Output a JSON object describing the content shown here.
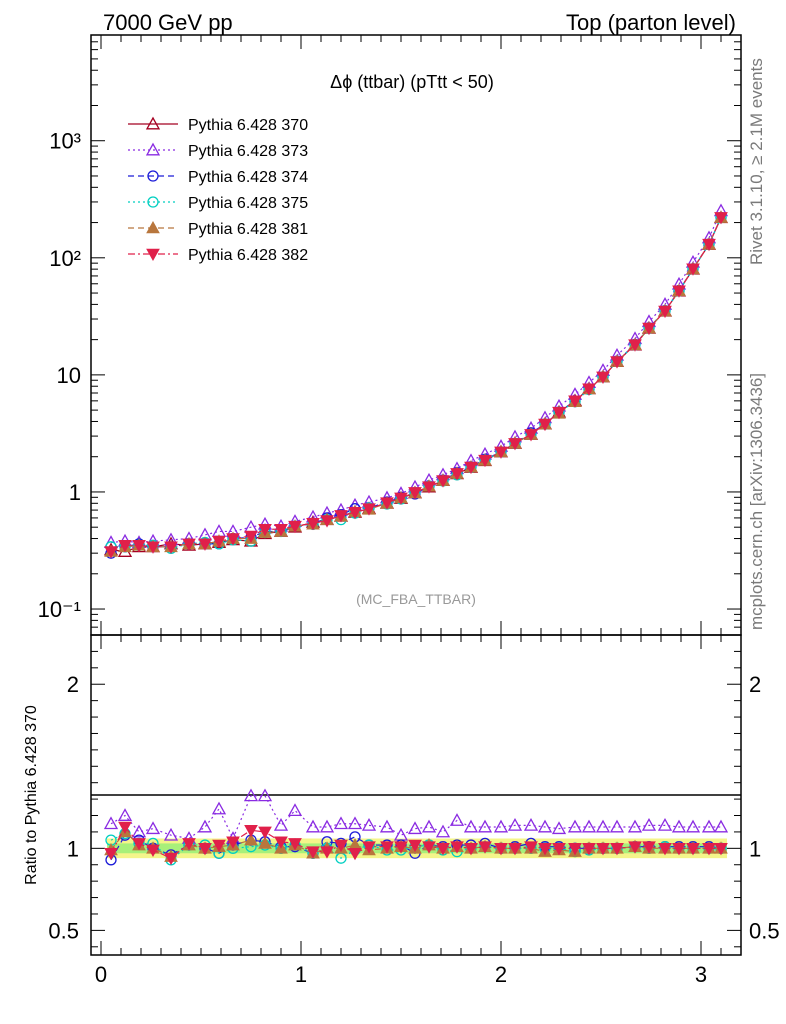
{
  "header": {
    "left": "7000 GeV pp",
    "right": "Top (parton level)"
  },
  "side_labels": {
    "rivet": "Rivet 3.1.10, ≥ 2.1M events",
    "mcplots": "mcplots.cern.ch [arXiv:1306.3436]"
  },
  "chart_data": [
    {
      "type": "line",
      "title": "Δϕ (ttbar) (pTtt < 50)",
      "annotation": "(MC_FBA_TTBAR)",
      "xlabel": "",
      "ylabel": "",
      "yscale": "log",
      "xlim": [
        -0.05,
        3.2
      ],
      "ylim": [
        0.06,
        8000
      ],
      "ytick_labels": [
        "10⁻¹",
        "1",
        "10",
        "10²",
        "10³"
      ],
      "ytick_values": [
        0.1,
        1,
        10,
        100,
        1000
      ],
      "legend_position": "top-left",
      "x": [
        0.05,
        0.12,
        0.19,
        0.26,
        0.35,
        0.44,
        0.52,
        0.59,
        0.66,
        0.75,
        0.82,
        0.9,
        0.97,
        1.06,
        1.13,
        1.2,
        1.27,
        1.34,
        1.43,
        1.5,
        1.57,
        1.64,
        1.71,
        1.78,
        1.85,
        1.92,
        2.0,
        2.07,
        2.15,
        2.22,
        2.29,
        2.37,
        2.44,
        2.51,
        2.58,
        2.67,
        2.74,
        2.82,
        2.89,
        2.96,
        3.04,
        3.1
      ],
      "series": [
        {
          "name": "Pythia 6.428 370",
          "color": "#a50021",
          "marker": "triangle-open",
          "dash": "solid",
          "values": [
            0.32,
            0.31,
            0.34,
            0.34,
            0.36,
            0.35,
            0.36,
            0.37,
            0.39,
            0.38,
            0.44,
            0.46,
            0.5,
            0.55,
            0.58,
            0.62,
            0.67,
            0.72,
            0.8,
            0.88,
            0.98,
            1.1,
            1.25,
            1.43,
            1.62,
            1.85,
            2.2,
            2.6,
            3.1,
            3.8,
            4.8,
            6.0,
            7.6,
            9.6,
            13.0,
            18.0,
            25.0,
            35.0,
            52.0,
            80.0,
            130.0,
            220.0
          ]
        },
        {
          "name": "Pythia 6.428 373",
          "color": "#8a2be2",
          "marker": "triangle-open",
          "dash": "dotted",
          "values": [
            0.37,
            0.38,
            0.37,
            0.38,
            0.39,
            0.4,
            0.43,
            0.46,
            0.46,
            0.5,
            0.53,
            0.51,
            0.56,
            0.61,
            0.66,
            0.7,
            0.77,
            0.82,
            0.89,
            0.97,
            1.1,
            1.26,
            1.4,
            1.58,
            1.85,
            2.1,
            2.45,
            2.95,
            3.5,
            4.3,
            5.4,
            6.8,
            8.6,
            10.9,
            14.7,
            20.4,
            28.5,
            40.0,
            59.5,
            91.5,
            148.0,
            252.0
          ]
        },
        {
          "name": "Pythia 6.428 374",
          "color": "#1c1cd8",
          "marker": "circle-open",
          "dash": "dashed",
          "values": [
            0.3,
            0.34,
            0.36,
            0.34,
            0.34,
            0.36,
            0.36,
            0.36,
            0.4,
            0.41,
            0.46,
            0.46,
            0.51,
            0.53,
            0.6,
            0.64,
            0.72,
            0.73,
            0.82,
            0.9,
            0.96,
            1.12,
            1.26,
            1.46,
            1.64,
            1.9,
            2.2,
            2.6,
            3.2,
            3.8,
            4.8,
            6.0,
            7.6,
            9.6,
            13.1,
            18.2,
            25.2,
            35.4,
            52.5,
            80.5,
            131.0,
            221.0
          ]
        },
        {
          "name": "Pythia 6.428 375",
          "color": "#00cfc1",
          "marker": "circle-open",
          "dash": "dotted",
          "values": [
            0.34,
            0.34,
            0.35,
            0.35,
            0.33,
            0.36,
            0.37,
            0.36,
            0.39,
            0.38,
            0.45,
            0.46,
            0.51,
            0.53,
            0.58,
            0.58,
            0.66,
            0.73,
            0.79,
            0.87,
            0.99,
            1.12,
            1.24,
            1.4,
            1.62,
            1.87,
            2.2,
            2.6,
            3.1,
            3.8,
            4.8,
            5.9,
            7.5,
            9.6,
            13.0,
            18.1,
            25.0,
            35.2,
            52.2,
            80.4,
            130.5,
            220.5
          ]
        },
        {
          "name": "Pythia 6.428 381",
          "color": "#b8763d",
          "marker": "triangle-filled",
          "dash": "dashed",
          "values": [
            0.31,
            0.34,
            0.35,
            0.34,
            0.34,
            0.36,
            0.36,
            0.38,
            0.4,
            0.4,
            0.45,
            0.46,
            0.51,
            0.53,
            0.58,
            0.62,
            0.68,
            0.71,
            0.8,
            0.89,
            0.98,
            1.12,
            1.25,
            1.44,
            1.63,
            1.86,
            2.2,
            2.6,
            3.1,
            3.8,
            4.7,
            5.9,
            7.6,
            9.6,
            13.0,
            18.1,
            25.1,
            35.1,
            52.3,
            80.4,
            130.3,
            220.8
          ]
        },
        {
          "name": "Pythia 6.428 382",
          "color": "#e0204a",
          "marker": "triangle-down-filled",
          "dash": "dashdot",
          "values": [
            0.31,
            0.35,
            0.35,
            0.34,
            0.34,
            0.36,
            0.36,
            0.38,
            0.4,
            0.42,
            0.48,
            0.48,
            0.51,
            0.54,
            0.57,
            0.63,
            0.67,
            0.72,
            0.81,
            0.89,
            0.99,
            1.11,
            1.25,
            1.44,
            1.63,
            1.87,
            2.2,
            2.6,
            3.1,
            3.8,
            4.8,
            6.0,
            7.6,
            9.6,
            13.0,
            18.1,
            25.1,
            35.1,
            52.3,
            80.6,
            130.7,
            221.5
          ]
        }
      ]
    },
    {
      "type": "line",
      "title": "",
      "ylabel": "Ratio to Pythia 6.428 370",
      "ylim": [
        0.35,
        2.3
      ],
      "xlim": [
        -0.05,
        3.2
      ],
      "ytick_labels": [
        "0.5",
        "1",
        "2"
      ],
      "ytick_values": [
        0.5,
        1,
        2
      ],
      "xtick_labels": [
        "0",
        "1",
        "2",
        "3"
      ],
      "xtick_values": [
        0,
        1,
        2,
        3
      ],
      "reference_line": 1,
      "band_inner": 0.03,
      "band_outer": 0.06,
      "band_colors": {
        "inner": "#a8f07a",
        "outer": "#f4f58a"
      },
      "x": [
        0.05,
        0.12,
        0.19,
        0.26,
        0.35,
        0.44,
        0.52,
        0.59,
        0.66,
        0.75,
        0.82,
        0.9,
        0.97,
        1.06,
        1.13,
        1.2,
        1.27,
        1.34,
        1.43,
        1.5,
        1.57,
        1.64,
        1.71,
        1.78,
        1.85,
        1.92,
        2.0,
        2.07,
        2.15,
        2.22,
        2.29,
        2.37,
        2.44,
        2.51,
        2.58,
        2.67,
        2.74,
        2.82,
        2.89,
        2.96,
        3.04,
        3.1
      ],
      "series": [
        {
          "name": "Pythia 6.428 373",
          "color": "#8a2be2",
          "marker": "triangle-open",
          "dash": "dotted",
          "values": [
            1.15,
            1.2,
            1.1,
            1.12,
            1.08,
            1.06,
            1.13,
            1.24,
            1.06,
            1.32,
            1.32,
            1.14,
            1.23,
            1.13,
            1.13,
            1.15,
            1.15,
            1.14,
            1.13,
            1.08,
            1.12,
            1.13,
            1.1,
            1.17,
            1.13,
            1.13,
            1.13,
            1.14,
            1.14,
            1.13,
            1.12,
            1.13,
            1.13,
            1.13,
            1.13,
            1.13,
            1.14,
            1.14,
            1.13,
            1.13,
            1.13,
            1.13
          ]
        },
        {
          "name": "Pythia 6.428 374",
          "color": "#1c1cd8",
          "marker": "circle-open",
          "dash": "dashed",
          "values": [
            0.93,
            1.08,
            1.05,
            1.0,
            0.96,
            1.02,
            1.0,
            0.97,
            1.02,
            1.05,
            1.04,
            1.01,
            1.01,
            0.97,
            1.04,
            1.03,
            1.07,
            1.02,
            1.02,
            1.02,
            0.97,
            1.02,
            1.01,
            1.02,
            1.02,
            1.03,
            1.0,
            1.01,
            1.03,
            1.01,
            1.01,
            1.0,
            1.0,
            1.0,
            1.0,
            1.01,
            1.01,
            1.01,
            1.01,
            1.01,
            1.01,
            1.0
          ]
        },
        {
          "name": "Pythia 6.428 375",
          "color": "#00cfc1",
          "marker": "circle-open",
          "dash": "dotted",
          "values": [
            1.05,
            1.09,
            1.03,
            1.03,
            0.93,
            1.02,
            1.02,
            0.97,
            1.0,
            1.01,
            1.02,
            1.0,
            1.02,
            0.97,
            1.0,
            0.94,
            0.99,
            1.02,
            0.99,
            0.99,
            1.01,
            1.02,
            0.99,
            0.98,
            1.0,
            1.01,
            1.0,
            1.0,
            1.0,
            1.0,
            1.0,
            0.98,
            0.99,
            1.0,
            1.0,
            1.01,
            1.0,
            1.01,
            1.0,
            1.0,
            1.0,
            1.0
          ]
        },
        {
          "name": "Pythia 6.428 381",
          "color": "#b8763d",
          "marker": "triangle-filled",
          "dash": "dashed",
          "values": [
            0.99,
            1.1,
            1.02,
            1.0,
            0.95,
            1.02,
            1.0,
            1.01,
            1.02,
            1.05,
            1.03,
            1.0,
            1.02,
            0.97,
            1.0,
            1.0,
            1.02,
            0.99,
            1.0,
            1.01,
            1.0,
            1.02,
            1.0,
            1.01,
            1.0,
            1.01,
            1.0,
            1.0,
            1.0,
            0.98,
            0.99,
            0.98,
            1.0,
            1.0,
            1.0,
            1.01,
            1.0,
            1.0,
            1.0,
            1.0,
            1.0,
            1.0
          ]
        },
        {
          "name": "Pythia 6.428 382",
          "color": "#e0204a",
          "marker": "triangle-down-filled",
          "dash": "dashdot",
          "values": [
            0.97,
            1.13,
            1.03,
            0.99,
            0.94,
            1.03,
            1.0,
            1.02,
            1.04,
            1.11,
            1.1,
            1.04,
            1.03,
            0.98,
            0.98,
            1.02,
            0.97,
            1.01,
            1.01,
            1.01,
            1.02,
            1.01,
            1.0,
            1.01,
            1.0,
            1.01,
            1.0,
            1.0,
            1.01,
            1.0,
            1.0,
            1.0,
            1.0,
            1.0,
            1.0,
            1.01,
            1.01,
            1.0,
            1.0,
            1.0,
            1.0,
            1.0
          ]
        }
      ]
    }
  ]
}
